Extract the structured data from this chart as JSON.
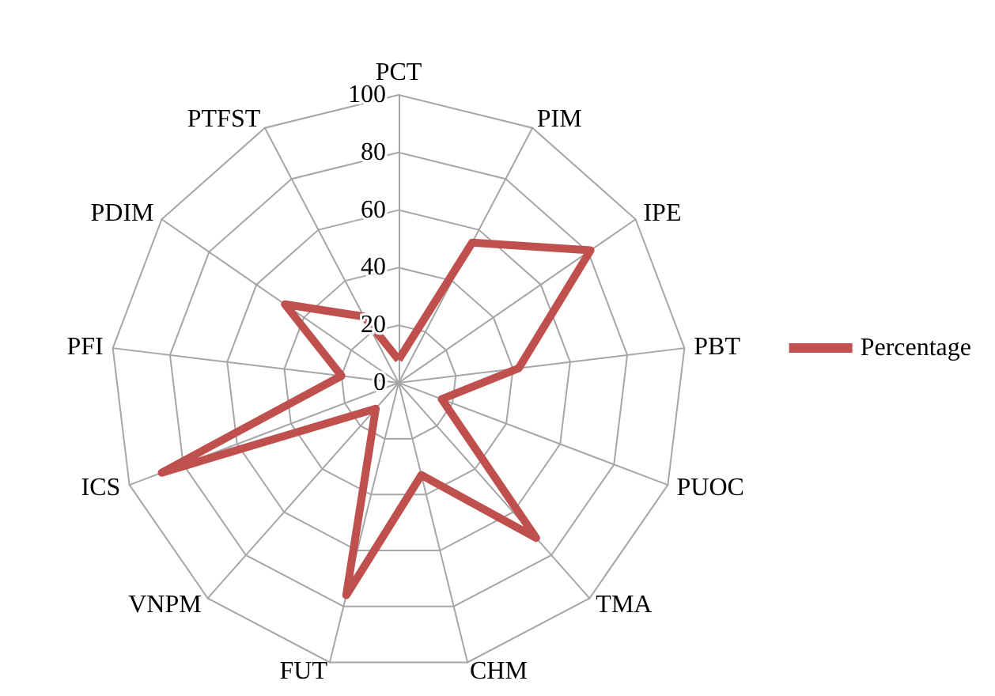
{
  "chart_data": {
    "type": "radar",
    "categories": [
      "PCT",
      "PIM",
      "IPE",
      "PBT",
      "PUOC",
      "TMA",
      "CHM",
      "FUT",
      "VNPM",
      "ICS",
      "PFI",
      "PDIM",
      "PTFST"
    ],
    "series": [
      {
        "name": "Percentage",
        "color": "#c0504d",
        "values": [
          8,
          55,
          81,
          42,
          16,
          72,
          33,
          76,
          12,
          88,
          20,
          48,
          26
        ]
      }
    ],
    "ylim": [
      0,
      100
    ],
    "yticks": [
      0,
      20,
      40,
      60,
      80,
      100
    ],
    "grid": true,
    "legend": "right",
    "marker": "none",
    "line_style": "solid"
  }
}
